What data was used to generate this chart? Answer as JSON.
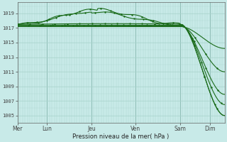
{
  "xlabel": "Pression niveau de la mer( hPa )",
  "ylim": [
    1004.0,
    1020.5
  ],
  "yticks": [
    1005,
    1007,
    1009,
    1011,
    1013,
    1015,
    1017,
    1019
  ],
  "xtick_labels": [
    "Mer",
    "Lun",
    "Jeu",
    "Ven",
    "Sam",
    "Dim"
  ],
  "xtick_positions": [
    0.0,
    1.0,
    2.5,
    4.0,
    5.5,
    6.5
  ],
  "xlim": [
    0.0,
    7.0
  ],
  "background_color": "#c8eae8",
  "grid_minor_color": "#a8d4cc",
  "grid_major_color": "#88b8b0",
  "line_color": "#1a6b1a",
  "line_color2": "#2a8b2a"
}
